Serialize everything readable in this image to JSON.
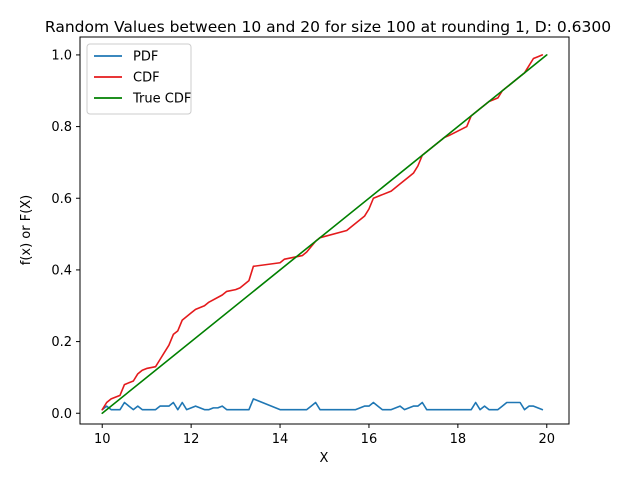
{
  "chart_data": {
    "type": "line",
    "title": "Random Values between 10 and 20 for size 100 at rounding 1, D: 0.6300",
    "xlabel": "X",
    "ylabel": "f(x) or F(X)",
    "xlim": [
      9.5,
      20.5
    ],
    "ylim": [
      -0.03,
      1.05
    ],
    "xticks": [
      10,
      12,
      14,
      16,
      18,
      20
    ],
    "yticks": [
      0.0,
      0.2,
      0.4,
      0.6,
      0.8,
      1.0
    ],
    "xtick_labels": [
      "10",
      "12",
      "14",
      "16",
      "18",
      "20"
    ],
    "ytick_labels": [
      "0.0",
      "0.2",
      "0.4",
      "0.6",
      "0.8",
      "1.0"
    ],
    "legend_position": "top-left",
    "series": [
      {
        "name": "PDF",
        "color": "#1f77b4",
        "x": [
          10.0,
          10.1,
          10.2,
          10.3,
          10.4,
          10.5,
          10.6,
          10.7,
          10.8,
          10.9,
          11.0,
          11.1,
          11.2,
          11.3,
          11.4,
          11.5,
          11.6,
          11.7,
          11.8,
          11.9,
          12.0,
          12.1,
          12.2,
          12.3,
          12.4,
          12.5,
          12.6,
          12.7,
          12.8,
          12.9,
          13.0,
          13.1,
          13.2,
          13.3,
          13.4,
          14.0,
          14.1,
          14.2,
          14.3,
          14.4,
          14.5,
          14.6,
          14.7,
          14.8,
          14.9,
          15.0,
          15.1,
          15.2,
          15.3,
          15.4,
          15.5,
          15.6,
          15.7,
          15.8,
          15.9,
          16.0,
          16.1,
          16.2,
          16.3,
          16.4,
          16.5,
          16.6,
          16.7,
          16.8,
          16.9,
          17.0,
          17.1,
          17.2,
          17.3,
          17.4,
          17.5,
          17.6,
          17.7,
          17.8,
          17.9,
          18.0,
          18.1,
          18.2,
          18.3,
          18.4,
          18.5,
          18.6,
          18.7,
          18.8,
          18.9,
          19.0,
          19.1,
          19.2,
          19.3,
          19.4,
          19.5,
          19.6,
          19.7,
          19.8,
          19.9
        ],
        "values": [
          0.01,
          0.02,
          0.01,
          0.01,
          0.01,
          0.03,
          0.02,
          0.01,
          0.02,
          0.01,
          0.01,
          0.01,
          0.01,
          0.02,
          0.02,
          0.02,
          0.03,
          0.01,
          0.03,
          0.01,
          0.015,
          0.02,
          0.015,
          0.01,
          0.01,
          0.015,
          0.015,
          0.02,
          0.01,
          0.01,
          0.01,
          0.01,
          0.01,
          0.01,
          0.04,
          0.01,
          0.01,
          0.01,
          0.01,
          0.01,
          0.01,
          0.01,
          0.02,
          0.03,
          0.01,
          0.01,
          0.01,
          0.01,
          0.01,
          0.01,
          0.01,
          0.01,
          0.01,
          0.015,
          0.02,
          0.02,
          0.03,
          0.02,
          0.01,
          0.01,
          0.01,
          0.015,
          0.02,
          0.01,
          0.015,
          0.02,
          0.02,
          0.03,
          0.01,
          0.01,
          0.01,
          0.01,
          0.01,
          0.01,
          0.01,
          0.01,
          0.01,
          0.01,
          0.01,
          0.03,
          0.01,
          0.02,
          0.01,
          0.01,
          0.01,
          0.02,
          0.03,
          0.03,
          0.03,
          0.03,
          0.01,
          0.02,
          0.02,
          0.015,
          0.01
        ]
      },
      {
        "name": "CDF",
        "color": "#e41a1c",
        "x": [
          10.0,
          10.1,
          10.2,
          10.3,
          10.4,
          10.5,
          10.6,
          10.7,
          10.8,
          10.9,
          11.0,
          11.2,
          11.3,
          11.4,
          11.5,
          11.6,
          11.7,
          11.8,
          12.0,
          12.1,
          12.3,
          12.4,
          12.7,
          12.8,
          13.0,
          13.1,
          13.2,
          13.3,
          13.4,
          14.0,
          14.1,
          14.5,
          14.6,
          14.7,
          14.8,
          14.9,
          15.5,
          15.6,
          15.9,
          16.0,
          16.1,
          16.5,
          16.7,
          16.9,
          17.0,
          17.1,
          17.2,
          17.7,
          17.8,
          18.2,
          18.3,
          18.4,
          18.5,
          18.6,
          18.7,
          18.8,
          18.9,
          19.0,
          19.1,
          19.3,
          19.4,
          19.5,
          19.6,
          19.7,
          19.8,
          19.9
        ],
        "values": [
          0.01,
          0.03,
          0.04,
          0.045,
          0.05,
          0.08,
          0.085,
          0.09,
          0.11,
          0.12,
          0.125,
          0.13,
          0.15,
          0.17,
          0.19,
          0.22,
          0.23,
          0.26,
          0.28,
          0.29,
          0.3,
          0.31,
          0.33,
          0.34,
          0.345,
          0.35,
          0.36,
          0.37,
          0.41,
          0.42,
          0.43,
          0.44,
          0.45,
          0.465,
          0.48,
          0.49,
          0.51,
          0.52,
          0.55,
          0.57,
          0.6,
          0.62,
          0.64,
          0.66,
          0.67,
          0.69,
          0.72,
          0.77,
          0.775,
          0.8,
          0.83,
          0.84,
          0.85,
          0.86,
          0.87,
          0.875,
          0.88,
          0.9,
          0.91,
          0.93,
          0.94,
          0.95,
          0.97,
          0.99,
          0.995,
          1.0
        ]
      },
      {
        "name": "True CDF",
        "color": "#008000",
        "x": [
          10.0,
          20.0
        ],
        "values": [
          0.0,
          1.0
        ]
      }
    ]
  }
}
